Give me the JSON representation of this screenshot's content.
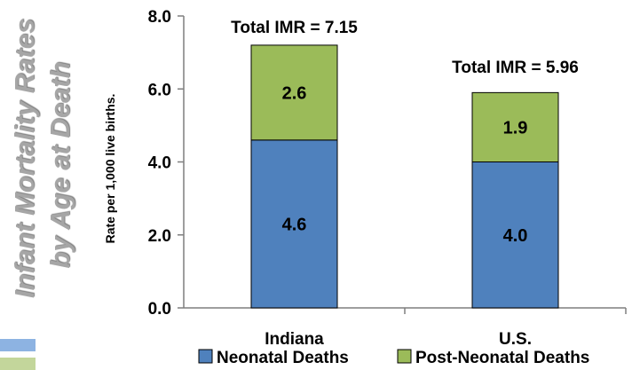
{
  "chart_data": {
    "type": "bar",
    "stacked": true,
    "title_line1": "Infant Mortality Rates",
    "title_line2": "by Age at Death",
    "ylabel": "Rate per 1,000 live births.",
    "xlabel": "",
    "ylim": [
      0,
      8
    ],
    "yticks": [
      "0.0",
      "2.0",
      "4.0",
      "6.0",
      "8.0"
    ],
    "ytick_values": [
      0,
      2,
      4,
      6,
      8
    ],
    "categories": [
      "Indiana",
      "U.S."
    ],
    "series": [
      {
        "name": "Neonatal Deaths",
        "values": [
          4.6,
          4.0
        ],
        "labels": [
          "4.6",
          "4.0"
        ],
        "color": "#4f81bd"
      },
      {
        "name": "Post-Neonatal Deaths",
        "values": [
          2.6,
          1.9
        ],
        "labels": [
          "2.6",
          "1.9"
        ],
        "color": "#9bbb59"
      }
    ],
    "totals": [
      7.15,
      5.96
    ],
    "total_labels": [
      "Total IMR = 7.15",
      "Total IMR = 5.96"
    ],
    "legend_position": "bottom",
    "grid": false
  }
}
